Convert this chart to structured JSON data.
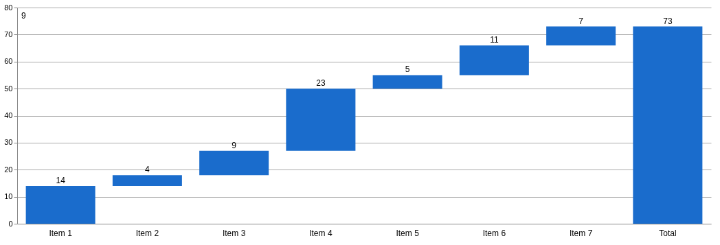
{
  "chart_data": {
    "type": "bar",
    "categories": [
      "Item 1",
      "Item 2",
      "Item 3",
      "Item 4",
      "Item 5",
      "Item 6",
      "Item 7",
      "Total"
    ],
    "values": [
      14,
      4,
      9,
      23,
      5,
      11,
      7,
      73
    ],
    "base": [
      0,
      14,
      18,
      27,
      50,
      55,
      66,
      0
    ],
    "color": "#1a6ccc",
    "data_labels": true,
    "ylim": [
      0,
      80
    ],
    "yticks": [
      0,
      10,
      20,
      30,
      40,
      50,
      60,
      70,
      80
    ],
    "grid": "y",
    "annotations": [
      "9"
    ]
  }
}
